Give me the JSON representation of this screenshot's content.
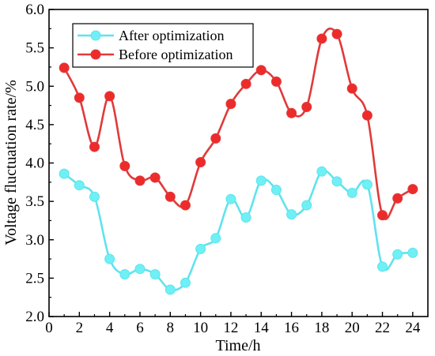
{
  "chart_data": {
    "type": "line",
    "title": "",
    "xlabel": "Time/h",
    "ylabel": "Voltage fluctuation rate/%",
    "xlim": [
      0,
      25
    ],
    "ylim": [
      2.0,
      6.0
    ],
    "x_ticks": [
      "0",
      "2",
      "4",
      "6",
      "8",
      "10",
      "12",
      "14",
      "16",
      "18",
      "20",
      "22",
      "24"
    ],
    "y_ticks": [
      "2.0",
      "2.5",
      "3.0",
      "3.5",
      "4.0",
      "4.5",
      "5.0",
      "5.5",
      "6.0"
    ],
    "grid": false,
    "legend_position": "top-left",
    "x": [
      1,
      2,
      3,
      4,
      5,
      6,
      7,
      8,
      9,
      10,
      11,
      12,
      13,
      14,
      15,
      16,
      17,
      18,
      19,
      20,
      21,
      22,
      23,
      24
    ],
    "series": [
      {
        "name": "After optimization",
        "color": "#5fe3ee",
        "marker_color": "#6ef0f5",
        "values": [
          3.86,
          3.71,
          3.56,
          2.75,
          2.55,
          2.62,
          2.55,
          2.35,
          2.44,
          2.88,
          3.02,
          3.53,
          3.29,
          3.77,
          3.65,
          3.33,
          3.45,
          3.89,
          3.76,
          3.61,
          3.72,
          2.65,
          2.81,
          2.83
        ]
      },
      {
        "name": "Before optimization",
        "color": "#e03a3a",
        "marker_color": "#ee2b2b",
        "values": [
          5.24,
          4.85,
          4.21,
          4.87,
          3.96,
          3.77,
          3.81,
          3.56,
          3.45,
          4.01,
          4.32,
          4.77,
          5.03,
          5.21,
          5.06,
          4.65,
          4.73,
          5.62,
          5.68,
          4.97,
          4.62,
          3.32,
          3.54,
          3.66
        ]
      }
    ]
  }
}
